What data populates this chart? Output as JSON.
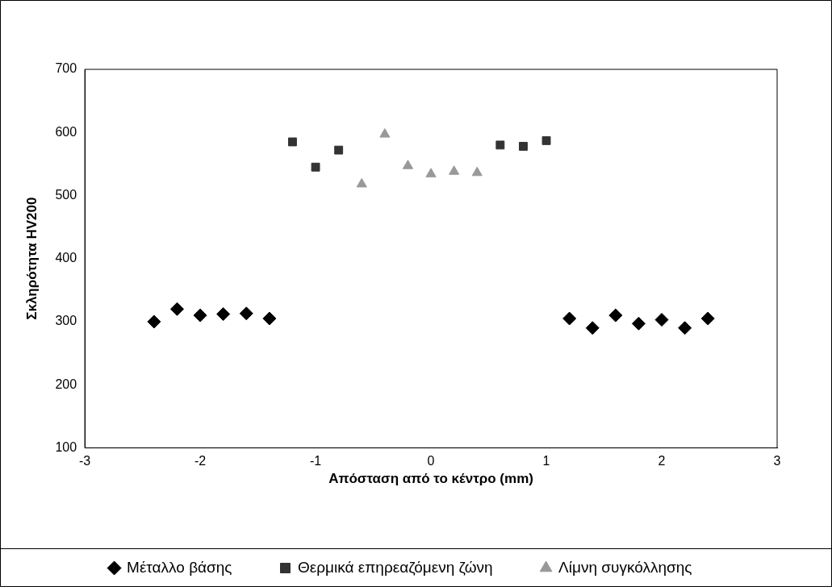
{
  "chart_data": {
    "type": "scatter",
    "xlabel": "Απόσταση από το κέντρο (mm)",
    "ylabel": "Σκληρότητα HV200",
    "xlim": [
      -3,
      3
    ],
    "xticks": [
      -3,
      -2,
      -1,
      0,
      1,
      2,
      3
    ],
    "ylim": [
      100,
      700
    ],
    "yticks": [
      100,
      200,
      300,
      400,
      500,
      600,
      700
    ],
    "grid": false,
    "legend": "bottom",
    "series": [
      {
        "name": "Μέταλλο βάσης",
        "color": "#000000",
        "marker": "diamond",
        "x": [
          -2.4,
          -2.2,
          -2.0,
          -1.8,
          -1.6,
          -1.4,
          1.2,
          1.4,
          1.6,
          1.8,
          2.0,
          2.2,
          2.4
        ],
        "values": [
          300,
          320,
          310,
          312,
          313,
          305,
          305,
          290,
          310,
          297,
          303,
          290,
          305
        ]
      },
      {
        "name": "Θερμικά επηρεαζόμενη ζώνη",
        "color": "#333333",
        "marker": "square",
        "x": [
          -1.2,
          -1.0,
          -0.8,
          0.6,
          0.8,
          1.0
        ],
        "values": [
          585,
          545,
          572,
          580,
          578,
          587
        ]
      },
      {
        "name": "Λίμνη συγκόλλησης",
        "color": "#999999",
        "marker": "triangle",
        "x": [
          -0.6,
          -0.4,
          -0.2,
          0,
          0.2,
          0.4
        ],
        "values": [
          518,
          597,
          547,
          534,
          538,
          536
        ]
      }
    ]
  }
}
